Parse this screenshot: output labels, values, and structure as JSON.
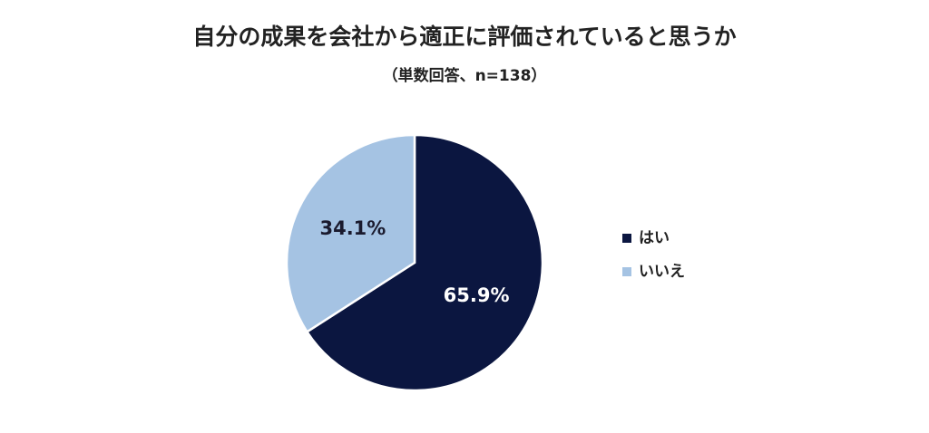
{
  "chart_data": {
    "type": "pie",
    "title": "自分の成果を会社から適正に評価されていると思うか",
    "subtitle": "（単数回答、n=138）",
    "categories": [
      "はい",
      "いいえ"
    ],
    "values": [
      65.9,
      34.1
    ],
    "value_labels": [
      "65.9%",
      "34.1%"
    ],
    "colors": [
      "#0b1640",
      "#a5c3e3"
    ],
    "legend": "right"
  }
}
